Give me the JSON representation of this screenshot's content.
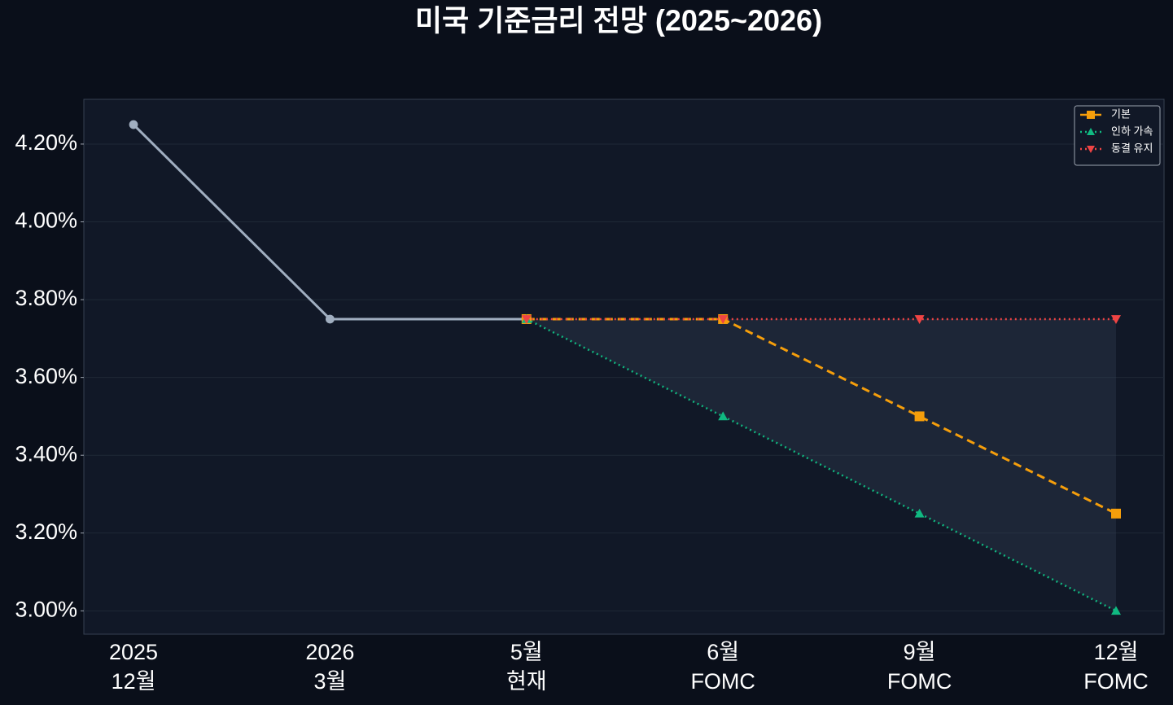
{
  "chart_data": {
    "type": "line",
    "title": "미국 기준금리 전망 (2025~2026)",
    "categories": [
      "2025\n12월",
      "2026\n3월",
      "5월\n현재",
      "6월\nFOMC",
      "9월\nFOMC",
      "12월\nFOMC"
    ],
    "series": [
      {
        "color": "#a0aec0",
        "line_style": "solid",
        "marker": "circle",
        "values": [
          4.25,
          3.75,
          3.75,
          null,
          null,
          null
        ]
      },
      {
        "name": "기본",
        "color": "#f59e0b",
        "line_style": "dashed",
        "marker": "square",
        "values": [
          null,
          null,
          3.75,
          3.75,
          3.5,
          3.25
        ]
      },
      {
        "name": "인하 가속",
        "color": "#10b981",
        "line_style": "dotted",
        "marker": "triangle-up",
        "values": [
          null,
          null,
          3.75,
          3.5,
          3.25,
          3.0
        ]
      },
      {
        "name": "동결 유지",
        "color": "#ef4444",
        "line_style": "dotted",
        "marker": "triangle-down",
        "values": [
          null,
          null,
          3.75,
          3.75,
          3.75,
          3.75
        ]
      }
    ],
    "ylim": [
      2.94,
      4.315
    ],
    "yticks": [
      {
        "value": 3.0,
        "label": "3.00%"
      },
      {
        "value": 3.2,
        "label": "3.20%"
      },
      {
        "value": 3.4,
        "label": "3.40%"
      },
      {
        "value": 3.6,
        "label": "3.60%"
      },
      {
        "value": 3.8,
        "label": "3.80%"
      },
      {
        "value": 4.0,
        "label": "4.00%"
      },
      {
        "value": 4.2,
        "label": "4.20%"
      }
    ],
    "grid": true,
    "legend": "upper right"
  }
}
